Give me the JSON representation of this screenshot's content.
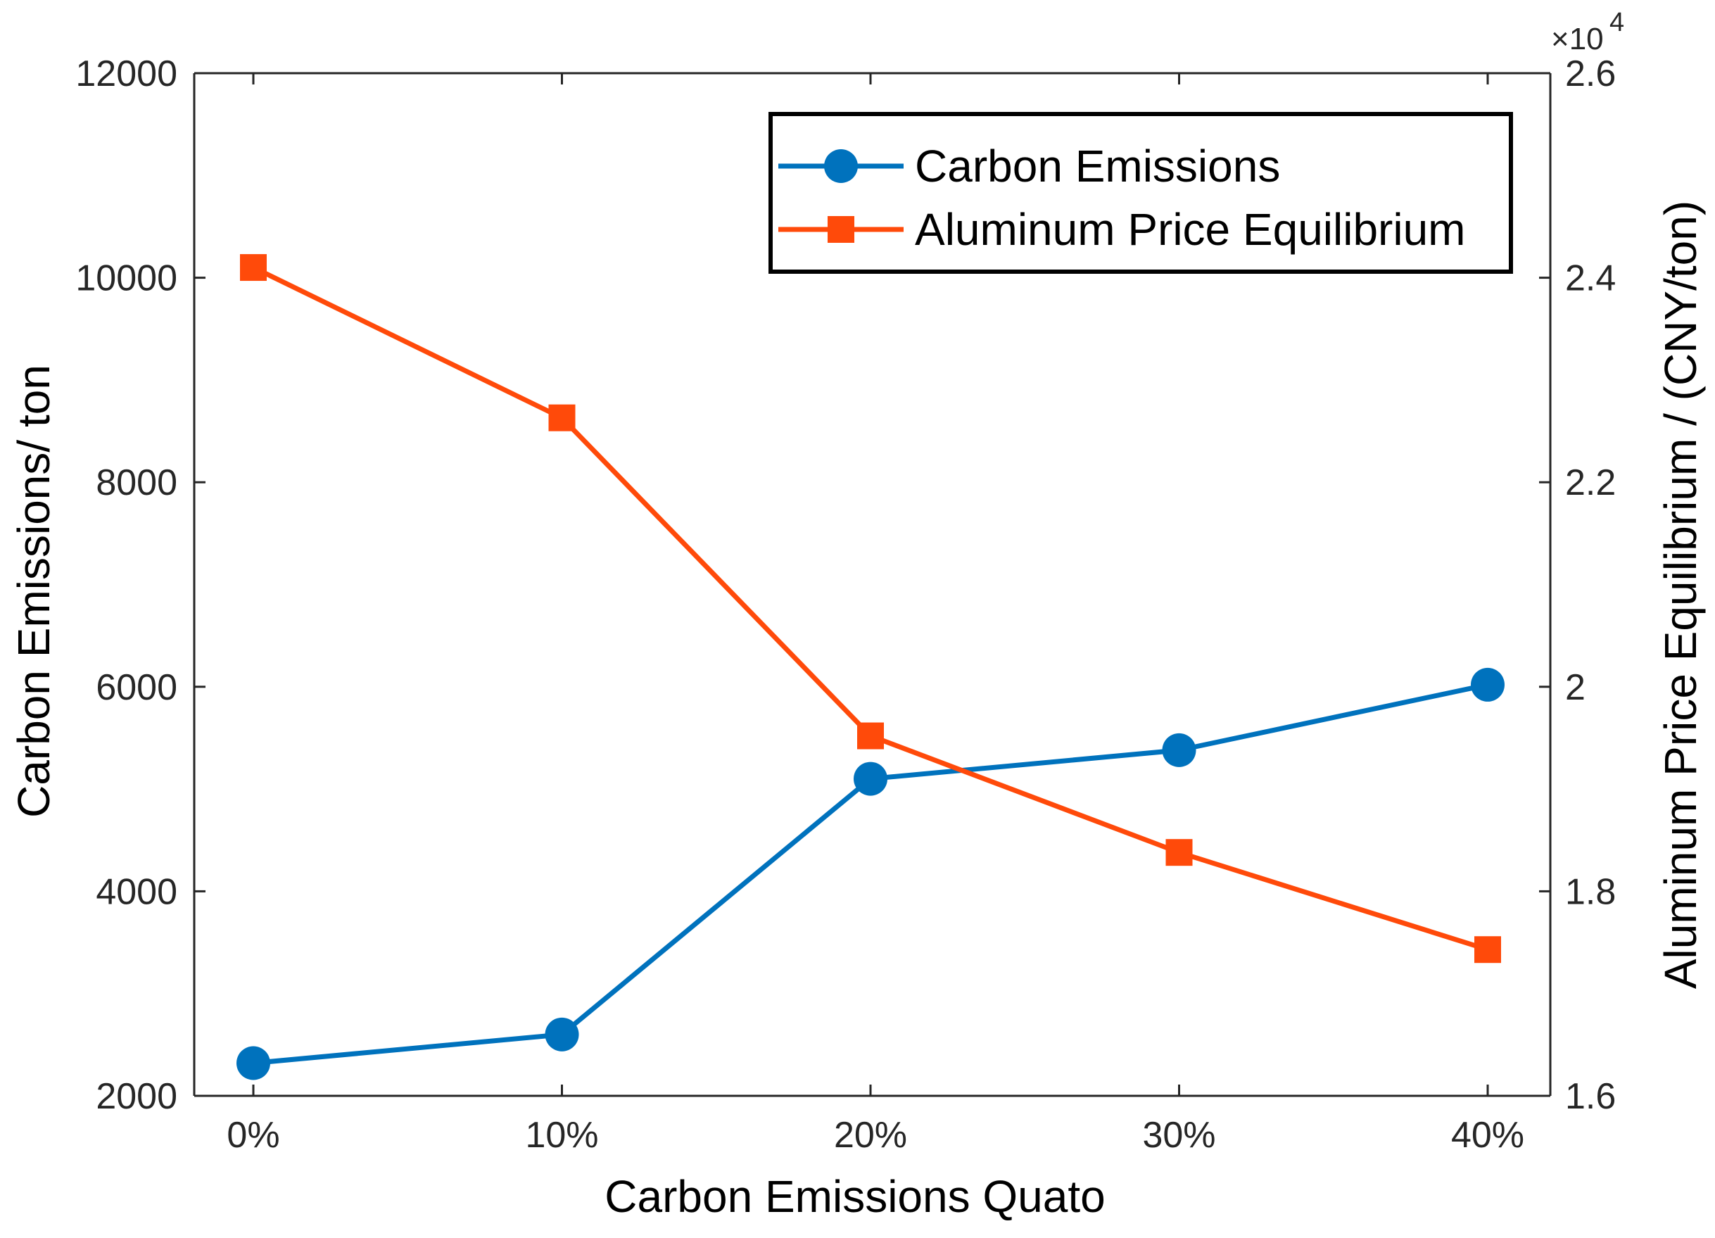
{
  "chart_data": {
    "type": "line",
    "title": "",
    "categories": [
      "0%",
      "10%",
      "20%",
      "30%",
      "40%"
    ],
    "xlabel": "Carbon Emissions Quato",
    "ylabel_left": "Carbon Emissions/ ton",
    "ylabel_right": "Aluminum Price Equilibrium / (CNY/ton)",
    "ylim_left": [
      2000,
      12000
    ],
    "yticks_left": [
      "2000",
      "4000",
      "6000",
      "8000",
      "10000",
      "12000"
    ],
    "ylim_right": [
      16000,
      26000
    ],
    "yticks_right": [
      "1.6",
      "1.8",
      "2",
      "2.2",
      "2.4",
      "2.6"
    ],
    "right_axis_exponent": {
      "base": "×10",
      "power": "4"
    },
    "grid": false,
    "legend_position": "top-right",
    "series": [
      {
        "name": "Carbon Emissions",
        "axis": "left",
        "marker": "circle",
        "color": "#0072BD",
        "values": [
          2320,
          2600,
          5100,
          5380,
          6020
        ]
      },
      {
        "name": "Aluminum Price Equilibrium",
        "axis": "right",
        "marker": "square",
        "color": "#FF4A0A",
        "values": [
          24100,
          22630,
          19520,
          18380,
          17430
        ]
      }
    ]
  }
}
